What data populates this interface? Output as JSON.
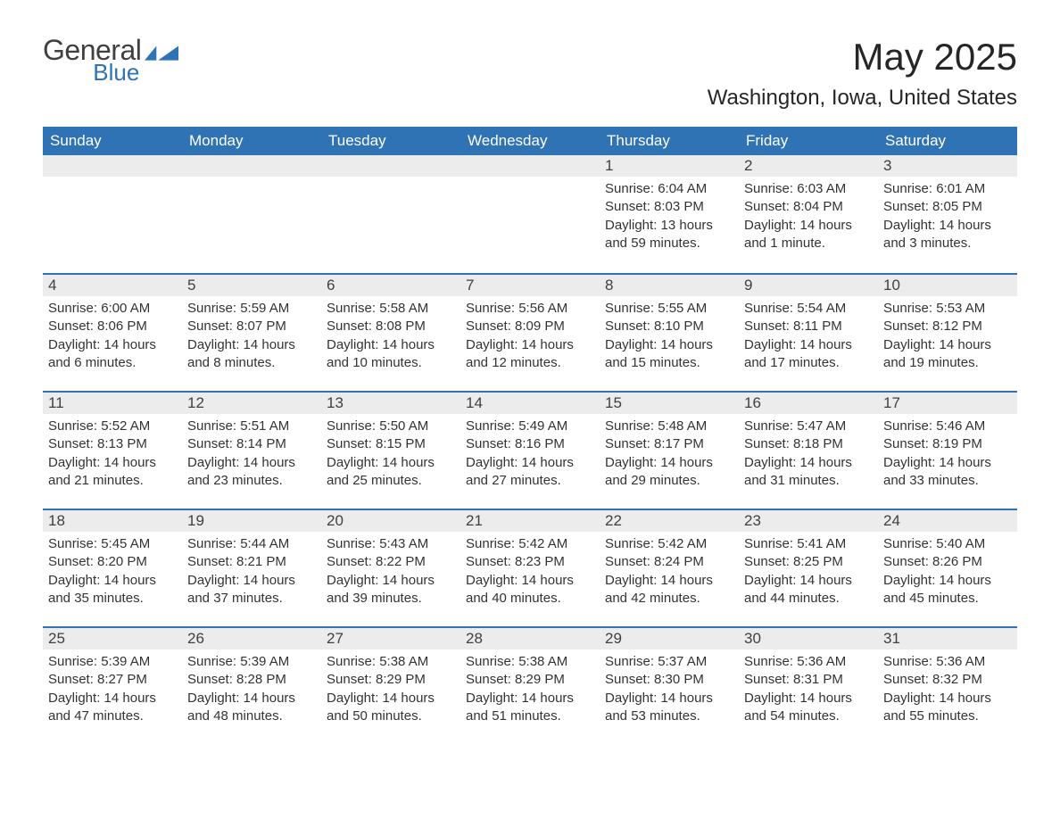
{
  "logo": {
    "text1": "General",
    "text2": "Blue"
  },
  "title": "May 2025",
  "location": "Washington, Iowa, United States",
  "colors": {
    "brand_blue": "#2f73b5",
    "header_text": "#ffffff",
    "day_bg": "#ececec",
    "text": "#333333",
    "page_bg": "#ffffff"
  },
  "weekdays": [
    "Sunday",
    "Monday",
    "Tuesday",
    "Wednesday",
    "Thursday",
    "Friday",
    "Saturday"
  ],
  "weeks": [
    [
      {
        "n": "",
        "sr": "",
        "ss": "",
        "dl": ""
      },
      {
        "n": "",
        "sr": "",
        "ss": "",
        "dl": ""
      },
      {
        "n": "",
        "sr": "",
        "ss": "",
        "dl": ""
      },
      {
        "n": "",
        "sr": "",
        "ss": "",
        "dl": ""
      },
      {
        "n": "1",
        "sr": "Sunrise: 6:04 AM",
        "ss": "Sunset: 8:03 PM",
        "dl": "Daylight: 13 hours and 59 minutes."
      },
      {
        "n": "2",
        "sr": "Sunrise: 6:03 AM",
        "ss": "Sunset: 8:04 PM",
        "dl": "Daylight: 14 hours and 1 minute."
      },
      {
        "n": "3",
        "sr": "Sunrise: 6:01 AM",
        "ss": "Sunset: 8:05 PM",
        "dl": "Daylight: 14 hours and 3 minutes."
      }
    ],
    [
      {
        "n": "4",
        "sr": "Sunrise: 6:00 AM",
        "ss": "Sunset: 8:06 PM",
        "dl": "Daylight: 14 hours and 6 minutes."
      },
      {
        "n": "5",
        "sr": "Sunrise: 5:59 AM",
        "ss": "Sunset: 8:07 PM",
        "dl": "Daylight: 14 hours and 8 minutes."
      },
      {
        "n": "6",
        "sr": "Sunrise: 5:58 AM",
        "ss": "Sunset: 8:08 PM",
        "dl": "Daylight: 14 hours and 10 minutes."
      },
      {
        "n": "7",
        "sr": "Sunrise: 5:56 AM",
        "ss": "Sunset: 8:09 PM",
        "dl": "Daylight: 14 hours and 12 minutes."
      },
      {
        "n": "8",
        "sr": "Sunrise: 5:55 AM",
        "ss": "Sunset: 8:10 PM",
        "dl": "Daylight: 14 hours and 15 minutes."
      },
      {
        "n": "9",
        "sr": "Sunrise: 5:54 AM",
        "ss": "Sunset: 8:11 PM",
        "dl": "Daylight: 14 hours and 17 minutes."
      },
      {
        "n": "10",
        "sr": "Sunrise: 5:53 AM",
        "ss": "Sunset: 8:12 PM",
        "dl": "Daylight: 14 hours and 19 minutes."
      }
    ],
    [
      {
        "n": "11",
        "sr": "Sunrise: 5:52 AM",
        "ss": "Sunset: 8:13 PM",
        "dl": "Daylight: 14 hours and 21 minutes."
      },
      {
        "n": "12",
        "sr": "Sunrise: 5:51 AM",
        "ss": "Sunset: 8:14 PM",
        "dl": "Daylight: 14 hours and 23 minutes."
      },
      {
        "n": "13",
        "sr": "Sunrise: 5:50 AM",
        "ss": "Sunset: 8:15 PM",
        "dl": "Daylight: 14 hours and 25 minutes."
      },
      {
        "n": "14",
        "sr": "Sunrise: 5:49 AM",
        "ss": "Sunset: 8:16 PM",
        "dl": "Daylight: 14 hours and 27 minutes."
      },
      {
        "n": "15",
        "sr": "Sunrise: 5:48 AM",
        "ss": "Sunset: 8:17 PM",
        "dl": "Daylight: 14 hours and 29 minutes."
      },
      {
        "n": "16",
        "sr": "Sunrise: 5:47 AM",
        "ss": "Sunset: 8:18 PM",
        "dl": "Daylight: 14 hours and 31 minutes."
      },
      {
        "n": "17",
        "sr": "Sunrise: 5:46 AM",
        "ss": "Sunset: 8:19 PM",
        "dl": "Daylight: 14 hours and 33 minutes."
      }
    ],
    [
      {
        "n": "18",
        "sr": "Sunrise: 5:45 AM",
        "ss": "Sunset: 8:20 PM",
        "dl": "Daylight: 14 hours and 35 minutes."
      },
      {
        "n": "19",
        "sr": "Sunrise: 5:44 AM",
        "ss": "Sunset: 8:21 PM",
        "dl": "Daylight: 14 hours and 37 minutes."
      },
      {
        "n": "20",
        "sr": "Sunrise: 5:43 AM",
        "ss": "Sunset: 8:22 PM",
        "dl": "Daylight: 14 hours and 39 minutes."
      },
      {
        "n": "21",
        "sr": "Sunrise: 5:42 AM",
        "ss": "Sunset: 8:23 PM",
        "dl": "Daylight: 14 hours and 40 minutes."
      },
      {
        "n": "22",
        "sr": "Sunrise: 5:42 AM",
        "ss": "Sunset: 8:24 PM",
        "dl": "Daylight: 14 hours and 42 minutes."
      },
      {
        "n": "23",
        "sr": "Sunrise: 5:41 AM",
        "ss": "Sunset: 8:25 PM",
        "dl": "Daylight: 14 hours and 44 minutes."
      },
      {
        "n": "24",
        "sr": "Sunrise: 5:40 AM",
        "ss": "Sunset: 8:26 PM",
        "dl": "Daylight: 14 hours and 45 minutes."
      }
    ],
    [
      {
        "n": "25",
        "sr": "Sunrise: 5:39 AM",
        "ss": "Sunset: 8:27 PM",
        "dl": "Daylight: 14 hours and 47 minutes."
      },
      {
        "n": "26",
        "sr": "Sunrise: 5:39 AM",
        "ss": "Sunset: 8:28 PM",
        "dl": "Daylight: 14 hours and 48 minutes."
      },
      {
        "n": "27",
        "sr": "Sunrise: 5:38 AM",
        "ss": "Sunset: 8:29 PM",
        "dl": "Daylight: 14 hours and 50 minutes."
      },
      {
        "n": "28",
        "sr": "Sunrise: 5:38 AM",
        "ss": "Sunset: 8:29 PM",
        "dl": "Daylight: 14 hours and 51 minutes."
      },
      {
        "n": "29",
        "sr": "Sunrise: 5:37 AM",
        "ss": "Sunset: 8:30 PM",
        "dl": "Daylight: 14 hours and 53 minutes."
      },
      {
        "n": "30",
        "sr": "Sunrise: 5:36 AM",
        "ss": "Sunset: 8:31 PM",
        "dl": "Daylight: 14 hours and 54 minutes."
      },
      {
        "n": "31",
        "sr": "Sunrise: 5:36 AM",
        "ss": "Sunset: 8:32 PM",
        "dl": "Daylight: 14 hours and 55 minutes."
      }
    ]
  ]
}
